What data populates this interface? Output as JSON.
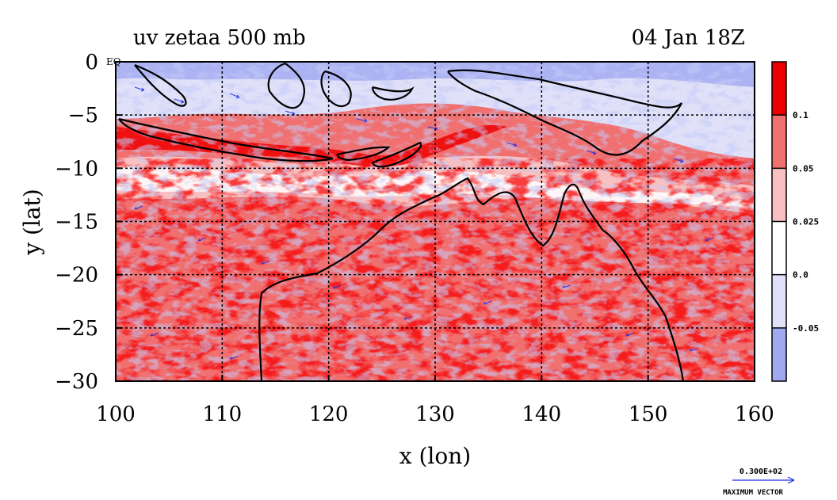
{
  "chart_data": {
    "type": "heatmap",
    "title_left": "uv zetaa 500 mb",
    "title_right": "04 Jan 18Z",
    "xlabel": "x (lon)",
    "ylabel": "y (lat)",
    "xlim": [
      100,
      160
    ],
    "ylim": [
      -30,
      0
    ],
    "x_ticks": [
      "100",
      "110",
      "120",
      "130",
      "140",
      "150",
      "160"
    ],
    "y_ticks": [
      "0",
      "−5",
      "−10",
      "−15",
      "−20",
      "−25",
      "−30"
    ],
    "eq_label": "EQ",
    "grid": true,
    "colorbar": {
      "levels": [
        "0.1",
        "0.05",
        "0.025",
        "0.0",
        "-0.05"
      ],
      "colors": [
        "#ee0000",
        "#f07070",
        "#f8c0c0",
        "#ffffff",
        "#e0e0f8",
        "#a0a8f0"
      ]
    },
    "contour_colors": {
      "positive": "#d81818",
      "negative": "#7f88e8"
    },
    "vector_color": "#1f2fe6",
    "coastline_color": "#000000",
    "max_vector": {
      "value": "0.300E+02",
      "label": "MAXIMUM VECTOR"
    }
  }
}
